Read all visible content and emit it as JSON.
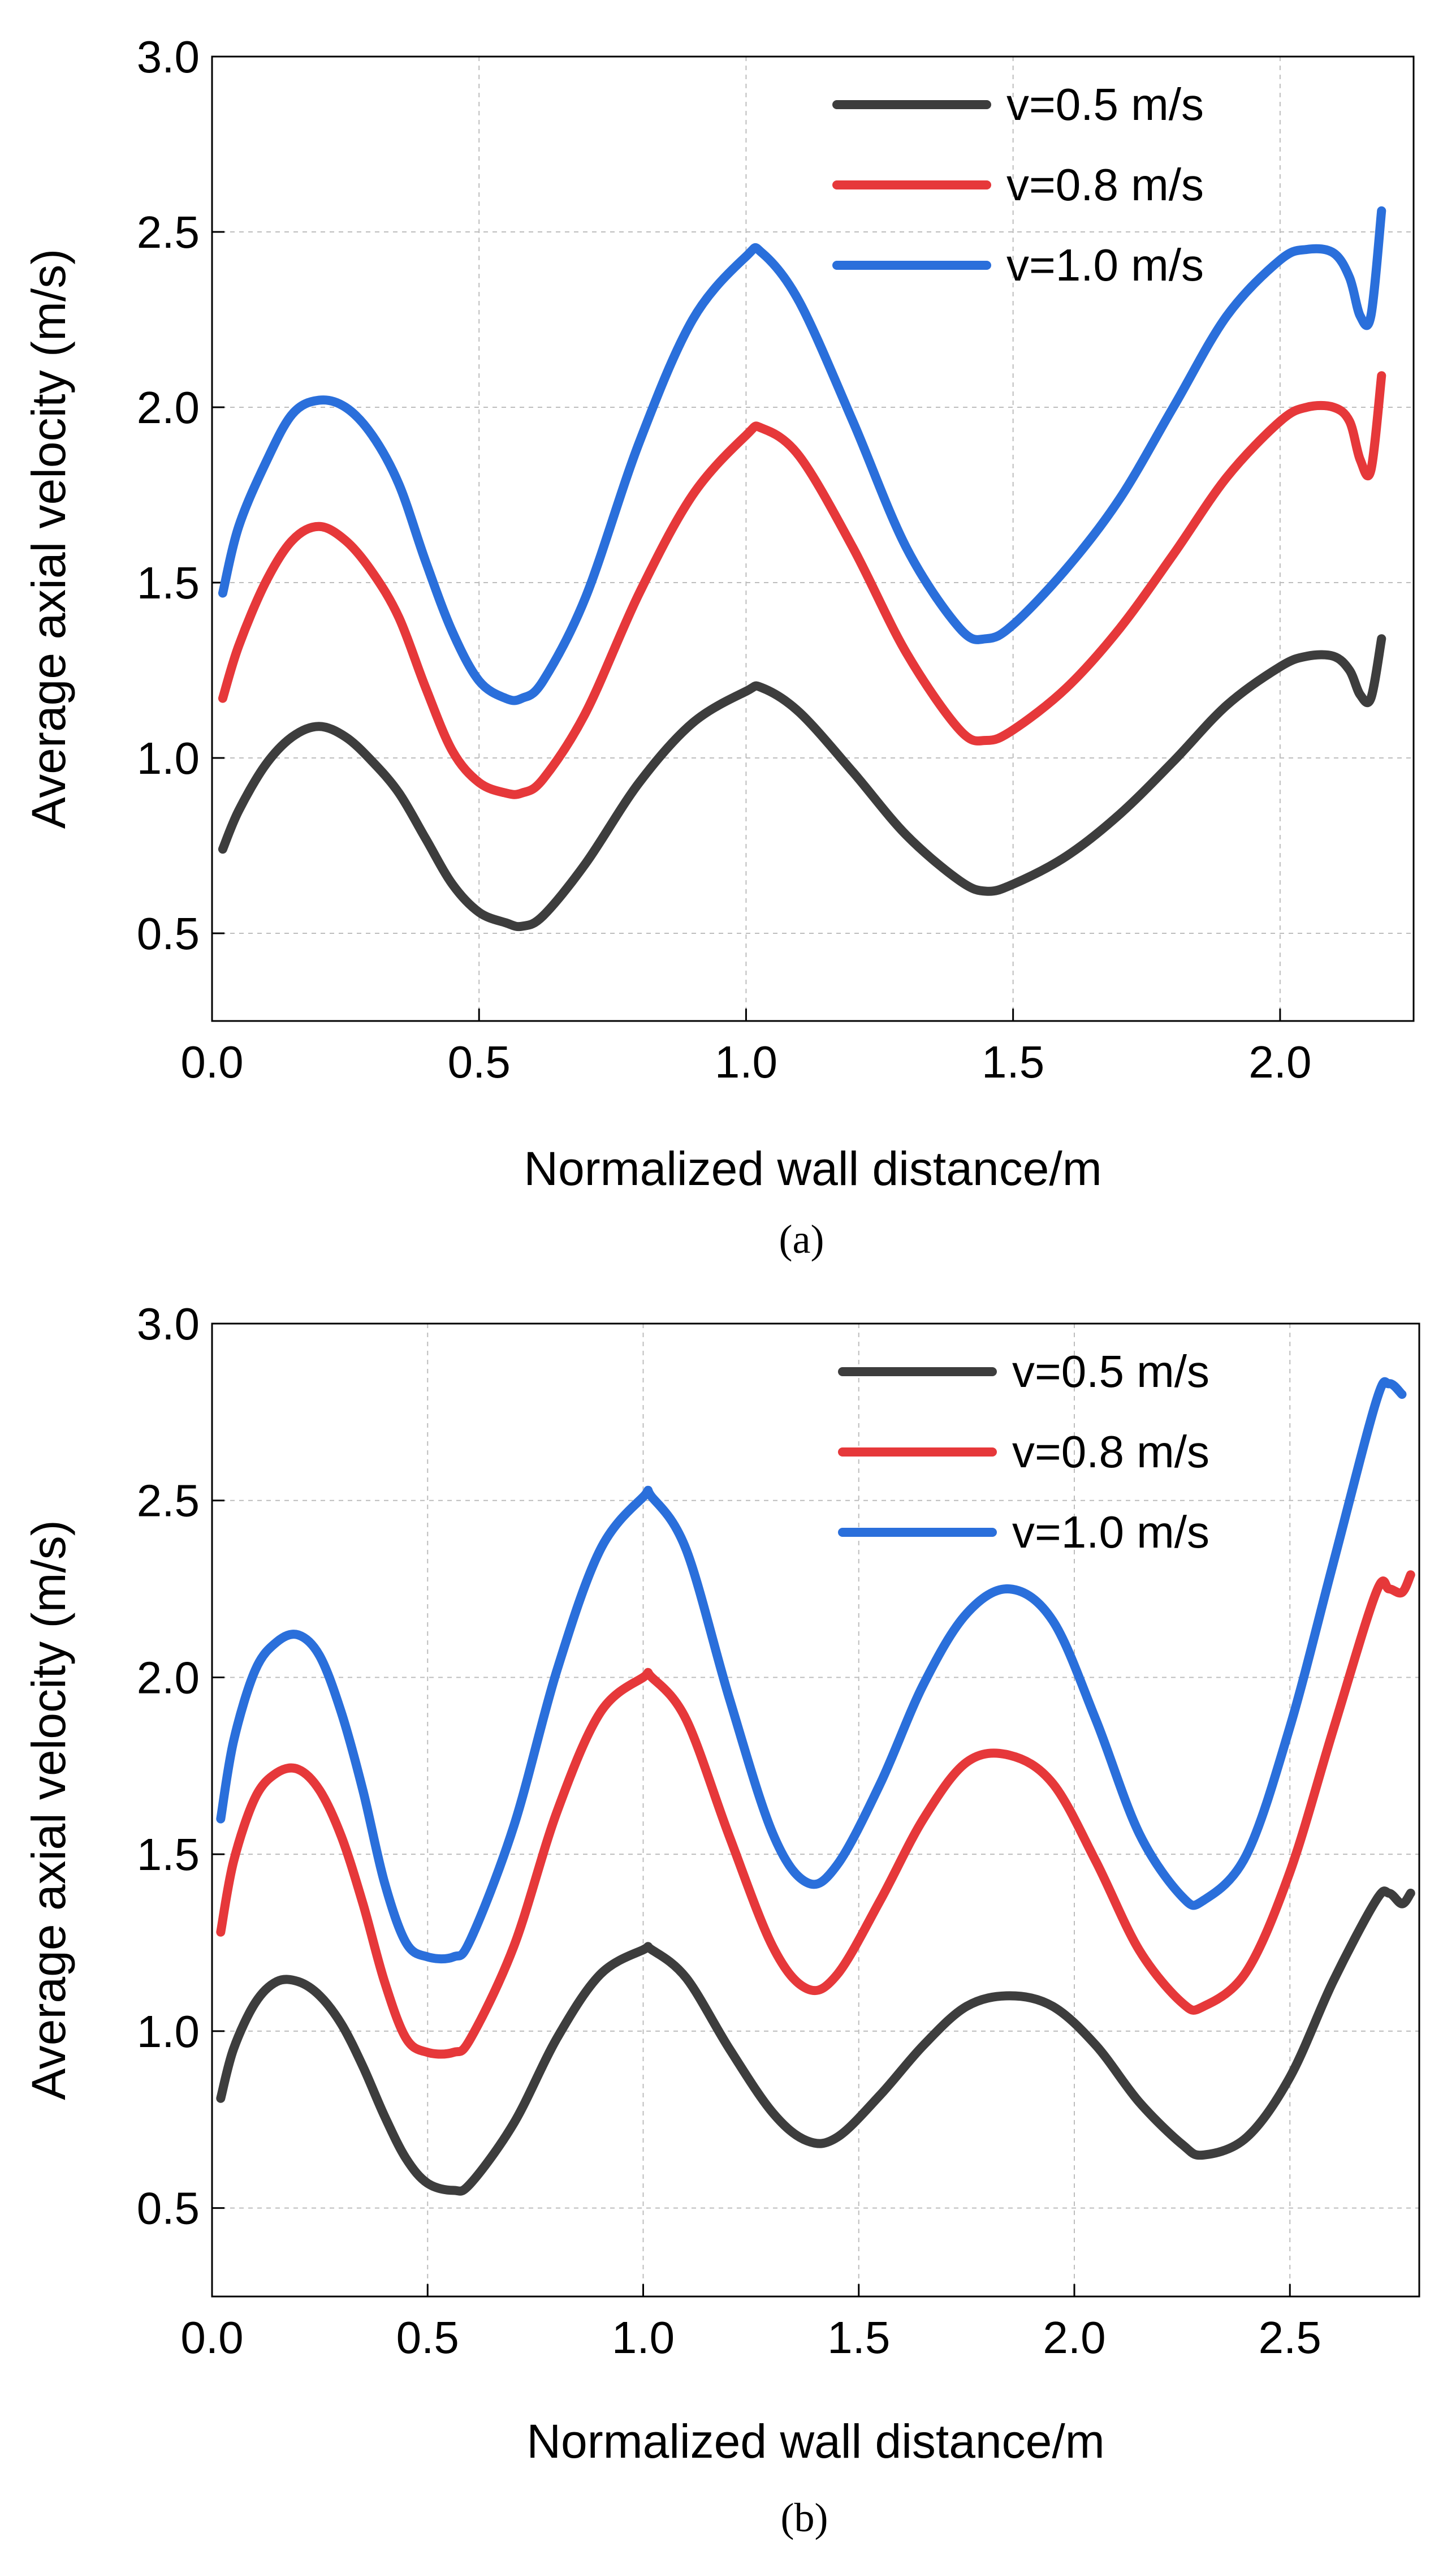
{
  "colors": {
    "series": [
      "#3d3d3d",
      "#e6383a",
      "#2a6fdb"
    ],
    "grid": "#bdbdbd",
    "axis": "#000000"
  },
  "chart_data": [
    {
      "type": "line",
      "title": "",
      "panel_label": "(a)",
      "xlabel": "Normalized wall distance/m",
      "ylabel": "Average axial velocity (m/s)",
      "xlim": [
        0.0,
        2.25
      ],
      "ylim": [
        0.25,
        3.0
      ],
      "xticks": [
        0.0,
        0.5,
        1.0,
        1.5,
        2.0
      ],
      "xtick_labels": [
        "0.0",
        "0.5",
        "1.0",
        "1.5",
        "2.0"
      ],
      "yticks": [
        0.5,
        1.0,
        1.5,
        2.0,
        2.5,
        3.0
      ],
      "ytick_labels": [
        "0.5",
        "1.0",
        "1.5",
        "2.0",
        "2.5",
        "3.0"
      ],
      "grid": true,
      "legend_position": "top-right",
      "series": [
        {
          "name": "v=0.5 m/s",
          "x": [
            0.02,
            0.05,
            0.1,
            0.15,
            0.2,
            0.25,
            0.3,
            0.35,
            0.4,
            0.45,
            0.5,
            0.55,
            0.58,
            0.62,
            0.7,
            0.8,
            0.9,
            1.0,
            1.03,
            1.1,
            1.2,
            1.3,
            1.4,
            1.45,
            1.5,
            1.6,
            1.7,
            1.8,
            1.9,
            2.0,
            2.05,
            2.1,
            2.13,
            2.15,
            2.17,
            2.19
          ],
          "y": [
            0.74,
            0.85,
            0.98,
            1.06,
            1.09,
            1.06,
            0.99,
            0.9,
            0.77,
            0.64,
            0.56,
            0.53,
            0.52,
            0.55,
            0.7,
            0.93,
            1.1,
            1.19,
            1.2,
            1.13,
            0.96,
            0.78,
            0.65,
            0.62,
            0.64,
            0.72,
            0.84,
            0.99,
            1.15,
            1.26,
            1.29,
            1.29,
            1.25,
            1.18,
            1.17,
            1.34
          ]
        },
        {
          "name": "v=0.8 m/s",
          "x": [
            0.02,
            0.05,
            0.1,
            0.15,
            0.2,
            0.25,
            0.3,
            0.35,
            0.4,
            0.45,
            0.5,
            0.55,
            0.58,
            0.62,
            0.7,
            0.8,
            0.9,
            1.0,
            1.03,
            1.1,
            1.2,
            1.3,
            1.4,
            1.45,
            1.5,
            1.6,
            1.7,
            1.8,
            1.9,
            2.0,
            2.05,
            2.1,
            2.13,
            2.15,
            2.17,
            2.19
          ],
          "y": [
            1.17,
            1.32,
            1.5,
            1.62,
            1.66,
            1.62,
            1.53,
            1.4,
            1.2,
            1.02,
            0.93,
            0.9,
            0.9,
            0.94,
            1.13,
            1.47,
            1.75,
            1.92,
            1.94,
            1.86,
            1.6,
            1.3,
            1.08,
            1.05,
            1.08,
            1.2,
            1.37,
            1.58,
            1.8,
            1.96,
            2.0,
            2.0,
            1.96,
            1.85,
            1.82,
            2.09
          ]
        },
        {
          "name": "v=1.0 m/s",
          "x": [
            0.02,
            0.05,
            0.1,
            0.15,
            0.2,
            0.25,
            0.3,
            0.35,
            0.4,
            0.45,
            0.5,
            0.55,
            0.58,
            0.62,
            0.7,
            0.8,
            0.9,
            1.0,
            1.03,
            1.1,
            1.2,
            1.3,
            1.4,
            1.45,
            1.5,
            1.6,
            1.7,
            1.8,
            1.9,
            2.0,
            2.05,
            2.1,
            2.13,
            2.15,
            2.17,
            2.19
          ],
          "y": [
            1.47,
            1.66,
            1.84,
            1.98,
            2.02,
            2.0,
            1.92,
            1.78,
            1.56,
            1.36,
            1.22,
            1.17,
            1.17,
            1.22,
            1.46,
            1.9,
            2.25,
            2.43,
            2.44,
            2.3,
            1.96,
            1.6,
            1.37,
            1.34,
            1.38,
            1.54,
            1.74,
            2.0,
            2.26,
            2.42,
            2.45,
            2.44,
            2.37,
            2.26,
            2.26,
            2.56
          ]
        }
      ]
    },
    {
      "type": "line",
      "title": "",
      "panel_label": "(b)",
      "xlabel": "Normalized wall distance/m",
      "ylabel": "Average axial velocity (m/s)",
      "xlim": [
        0.0,
        2.8
      ],
      "ylim": [
        0.25,
        3.0
      ],
      "xticks": [
        0.0,
        0.5,
        1.0,
        1.5,
        2.0,
        2.5
      ],
      "xtick_labels": [
        "0.0",
        "0.5",
        "1.0",
        "1.5",
        "2.0",
        "2.5"
      ],
      "yticks": [
        0.5,
        1.0,
        1.5,
        2.0,
        2.5,
        3.0
      ],
      "ytick_labels": [
        "0.5",
        "1.0",
        "1.5",
        "2.0",
        "2.5",
        "3.0"
      ],
      "grid": true,
      "legend_position": "top-right",
      "series": [
        {
          "name": "v=0.5 m/s",
          "x": [
            0.02,
            0.05,
            0.1,
            0.15,
            0.2,
            0.25,
            0.3,
            0.35,
            0.4,
            0.45,
            0.5,
            0.56,
            0.6,
            0.7,
            0.8,
            0.9,
            1.0,
            1.02,
            1.1,
            1.2,
            1.3,
            1.38,
            1.45,
            1.55,
            1.65,
            1.75,
            1.85,
            1.95,
            2.05,
            2.15,
            2.25,
            2.3,
            2.4,
            2.5,
            2.6,
            2.7,
            2.73,
            2.76,
            2.78
          ],
          "y": [
            0.81,
            0.95,
            1.08,
            1.14,
            1.14,
            1.1,
            1.02,
            0.9,
            0.76,
            0.64,
            0.57,
            0.55,
            0.57,
            0.74,
            0.98,
            1.16,
            1.23,
            1.23,
            1.15,
            0.95,
            0.77,
            0.69,
            0.7,
            0.82,
            0.96,
            1.07,
            1.1,
            1.07,
            0.96,
            0.8,
            0.68,
            0.65,
            0.7,
            0.87,
            1.14,
            1.37,
            1.39,
            1.36,
            1.39
          ]
        },
        {
          "name": "v=0.8 m/s",
          "x": [
            0.02,
            0.05,
            0.1,
            0.15,
            0.2,
            0.25,
            0.3,
            0.35,
            0.4,
            0.45,
            0.5,
            0.56,
            0.6,
            0.7,
            0.8,
            0.9,
            1.0,
            1.02,
            1.1,
            1.2,
            1.3,
            1.38,
            1.45,
            1.55,
            1.65,
            1.75,
            1.85,
            1.95,
            2.05,
            2.15,
            2.25,
            2.3,
            2.4,
            2.5,
            2.6,
            2.7,
            2.73,
            2.76,
            2.78
          ],
          "y": [
            1.28,
            1.48,
            1.66,
            1.73,
            1.74,
            1.68,
            1.55,
            1.36,
            1.14,
            0.98,
            0.94,
            0.94,
            0.98,
            1.24,
            1.62,
            1.9,
            2.0,
            2.0,
            1.88,
            1.55,
            1.24,
            1.12,
            1.16,
            1.37,
            1.6,
            1.76,
            1.78,
            1.7,
            1.48,
            1.23,
            1.08,
            1.07,
            1.17,
            1.45,
            1.85,
            2.24,
            2.25,
            2.24,
            2.29
          ]
        },
        {
          "name": "v=1.0 m/s",
          "x": [
            0.02,
            0.05,
            0.1,
            0.15,
            0.2,
            0.25,
            0.3,
            0.35,
            0.4,
            0.45,
            0.5,
            0.56,
            0.6,
            0.7,
            0.8,
            0.9,
            1.0,
            1.02,
            1.1,
            1.2,
            1.3,
            1.38,
            1.45,
            1.55,
            1.65,
            1.75,
            1.85,
            1.95,
            2.05,
            2.15,
            2.25,
            2.3,
            2.4,
            2.5,
            2.6,
            2.7,
            2.73,
            2.76
          ],
          "y": [
            1.6,
            1.82,
            2.02,
            2.1,
            2.12,
            2.06,
            1.9,
            1.68,
            1.42,
            1.25,
            1.21,
            1.21,
            1.26,
            1.58,
            2.02,
            2.36,
            2.51,
            2.51,
            2.36,
            1.94,
            1.56,
            1.42,
            1.47,
            1.7,
            1.98,
            2.18,
            2.25,
            2.16,
            1.88,
            1.56,
            1.38,
            1.37,
            1.5,
            1.86,
            2.32,
            2.78,
            2.83,
            2.8
          ]
        }
      ]
    }
  ]
}
